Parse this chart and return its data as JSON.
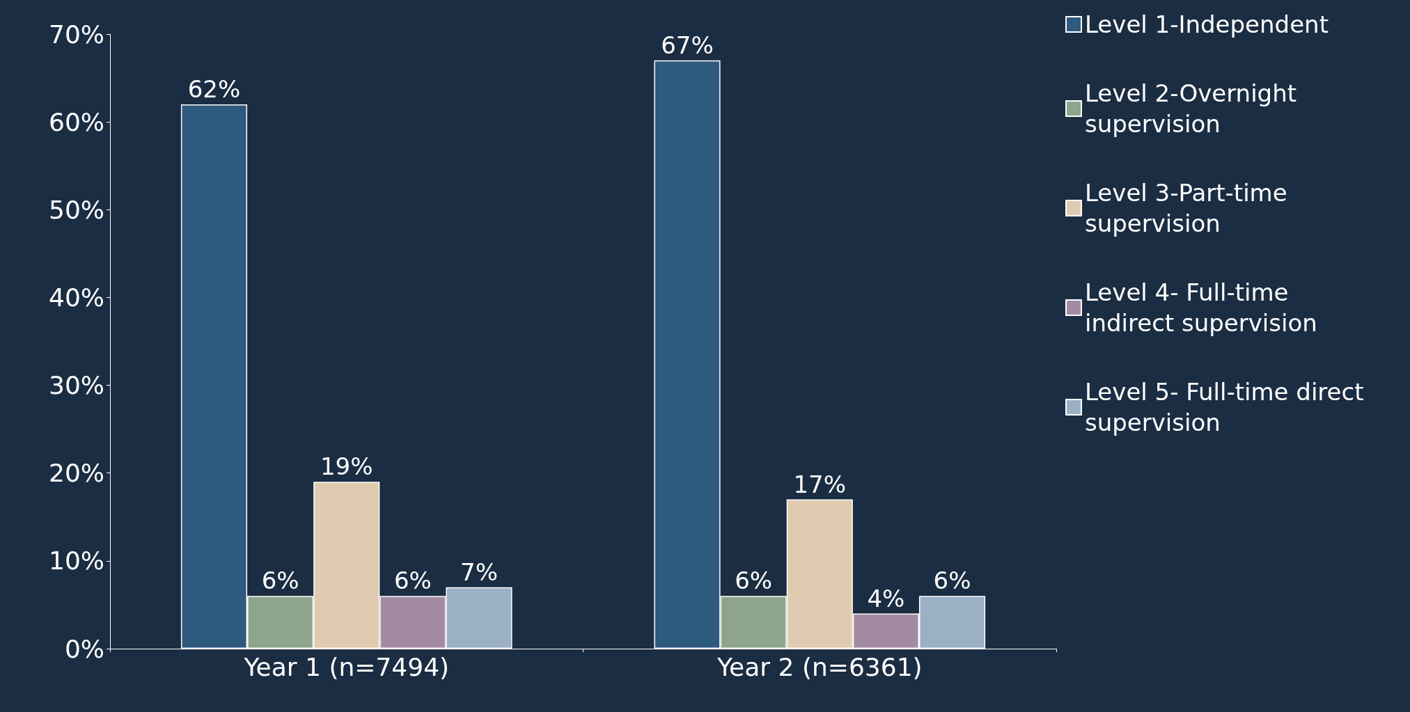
{
  "chart_data": {
    "type": "bar",
    "categories": [
      "Year 1 (n=7494)",
      "Year 2 (n=6361)"
    ],
    "series": [
      {
        "name": "Level 1-Independent",
        "color": "#2e5a7e",
        "values": [
          62,
          67
        ],
        "value_labels": [
          "62%",
          "67%"
        ]
      },
      {
        "name": "Level 2-Overnight supervision",
        "color": "#8da58a",
        "values": [
          6,
          6
        ],
        "value_labels": [
          "6%",
          "6%"
        ]
      },
      {
        "name": "Level 3-Part-time supervision",
        "color": "#e0cbb0",
        "values": [
          19,
          17
        ],
        "value_labels": [
          "19%",
          "17%"
        ]
      },
      {
        "name": "Level 4- Full-time indirect supervision",
        "color": "#a38ca3",
        "values": [
          6,
          4
        ],
        "value_labels": [
          "6%",
          "4%"
        ]
      },
      {
        "name": "Level 5- Full-time direct supervision",
        "color": "#9ab0c5",
        "values": [
          7,
          6
        ],
        "value_labels": [
          "7%",
          "6%"
        ]
      }
    ],
    "ylim": [
      0,
      70
    ],
    "yticks": [
      {
        "value": 0,
        "label": "0%"
      },
      {
        "value": 10,
        "label": "10%"
      },
      {
        "value": 20,
        "label": "20%"
      },
      {
        "value": 30,
        "label": "30%"
      },
      {
        "value": 40,
        "label": "40%"
      },
      {
        "value": 50,
        "label": "50%"
      },
      {
        "value": 60,
        "label": "60%"
      },
      {
        "value": 70,
        "label": "70%"
      }
    ],
    "grid": false,
    "legend": "right"
  }
}
